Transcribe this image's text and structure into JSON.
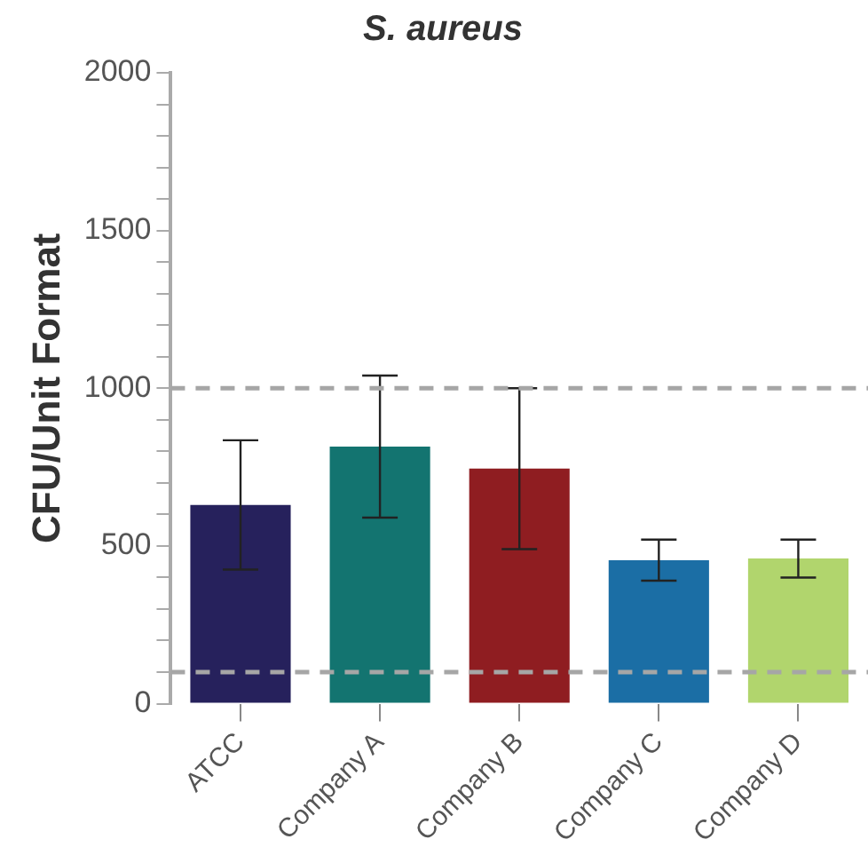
{
  "chart_data": {
    "type": "bar",
    "title": "S. aureus",
    "ylabel": "CFU/Unit Format",
    "categories": [
      "ATCC",
      "Company A",
      "Company B",
      "Company C",
      "Company D"
    ],
    "values": [
      630,
      815,
      745,
      455,
      460
    ],
    "colors": [
      "#26215c",
      "#137470",
      "#8f1d21",
      "#1b6ea5",
      "#b1d56d"
    ],
    "errors": [
      205,
      225,
      255,
      65,
      60
    ],
    "ylim": [
      0,
      2000
    ],
    "yticks": [
      0,
      {
        "value": 100,
        "label": null
      },
      {
        "value": 200,
        "label": null
      },
      {
        "value": 300,
        "label": null
      },
      {
        "value": 400,
        "label": null
      },
      500,
      {
        "value": 600,
        "label": null
      },
      {
        "value": 700,
        "label": null
      },
      {
        "value": 800,
        "label": null
      },
      {
        "value": 900,
        "label": null
      },
      1000,
      {
        "value": 1100,
        "label": null
      },
      {
        "value": 1200,
        "label": null
      },
      {
        "value": 1300,
        "label": null
      },
      {
        "value": 1400,
        "label": null
      },
      1500,
      {
        "value": 1600,
        "label": null
      },
      {
        "value": 1700,
        "label": null
      },
      {
        "value": 1800,
        "label": null
      },
      {
        "value": 1900,
        "label": null
      },
      2000
    ],
    "ref_lines": [
      {
        "axis": "y",
        "value": 1000,
        "color": "#a6a6a6",
        "line_style": "dashed"
      },
      {
        "axis": "y",
        "value": 100,
        "color": "#a6a6a6",
        "line_style": "dashed"
      }
    ],
    "grid": false,
    "legend": false
  }
}
